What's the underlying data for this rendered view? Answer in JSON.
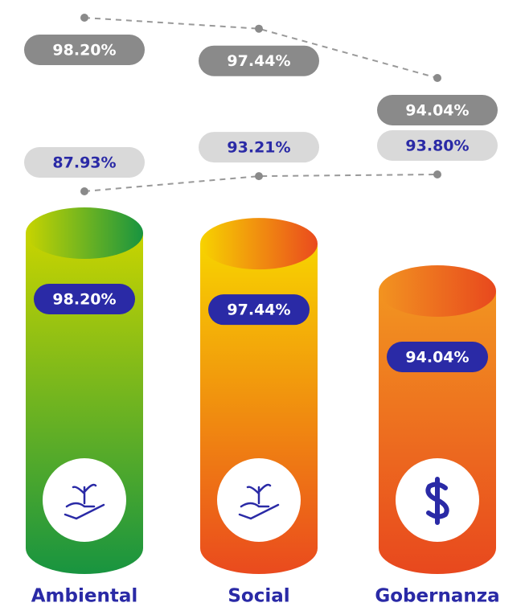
{
  "chart_data": {
    "type": "cylinder",
    "categories": [
      "Ambiental",
      "Social",
      "Gobernanza"
    ],
    "series": [
      {
        "values": [
          98.2,
          97.44,
          94.04
        ],
        "value_labels": [
          "98.20%",
          "97.44%",
          "94.04%"
        ],
        "colors": [
          [
            "#c8d400",
            "#189440"
          ],
          [
            "#f7d300",
            "#ea4a1e"
          ],
          [
            "#f29420",
            "#e8481e"
          ]
        ]
      },
      {
        "values": [
          98.2,
          97.44,
          94.04
        ],
        "value_labels": [
          "98.20%",
          "97.44%",
          "94.04%"
        ],
        "color": "#8a8a8a"
      },
      {
        "values": [
          87.93,
          93.21,
          93.8
        ],
        "value_labels": [
          "87.93%",
          "93.21%",
          "93.80%"
        ],
        "color": "#d9d9d9"
      }
    ]
  }
}
